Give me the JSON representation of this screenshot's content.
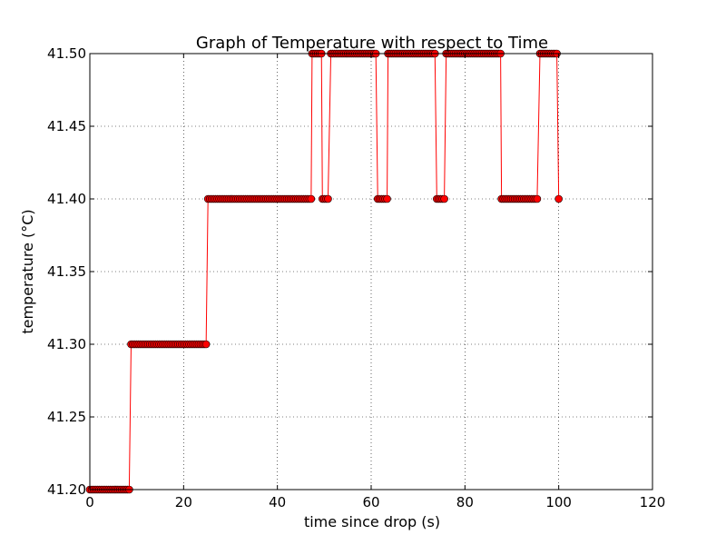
{
  "chart_data": {
    "type": "line",
    "title": "Graph of Temperature with respect to Time",
    "xlabel": "time since drop (s)",
    "ylabel": "temperature (°C)",
    "xlim": [
      0,
      120
    ],
    "ylim": [
      41.2,
      41.5
    ],
    "xticks": [
      "0",
      "20",
      "40",
      "60",
      "80",
      "100",
      "120"
    ],
    "yticks": [
      "41.20",
      "41.25",
      "41.30",
      "41.35",
      "41.40",
      "41.45",
      "41.50"
    ],
    "grid": true,
    "legend": "none",
    "line_color": "#ff0000",
    "marker_face_color": "#ff0000",
    "marker_edge_color": "#000000",
    "marker": "circle",
    "series": [
      {
        "segments": [
          {
            "x_start": 0.0,
            "x_end": 8.6,
            "y": 41.2
          },
          {
            "x_start": 8.8,
            "x_end": 24.8,
            "y": 41.3
          },
          {
            "x_start": 25.2,
            "x_end": 47.0,
            "y": 41.4
          },
          {
            "x_start": 47.4,
            "x_end": 49.2,
            "y": 41.5
          },
          {
            "x_start": 49.6,
            "x_end": 51.0,
            "y": 41.4
          },
          {
            "x_start": 51.4,
            "x_end": 61.0,
            "y": 41.5
          },
          {
            "x_start": 61.4,
            "x_end": 63.2,
            "y": 41.4
          },
          {
            "x_start": 63.6,
            "x_end": 73.6,
            "y": 41.5
          },
          {
            "x_start": 74.0,
            "x_end": 75.6,
            "y": 41.4
          },
          {
            "x_start": 76.0,
            "x_end": 87.4,
            "y": 41.5
          },
          {
            "x_start": 87.8,
            "x_end": 95.6,
            "y": 41.4
          },
          {
            "x_start": 96.0,
            "x_end": 99.6,
            "y": 41.5
          },
          {
            "x_start": 100.0,
            "x_end": 100.0,
            "y": 41.4
          }
        ],
        "sample_interval": 0.4
      }
    ]
  }
}
